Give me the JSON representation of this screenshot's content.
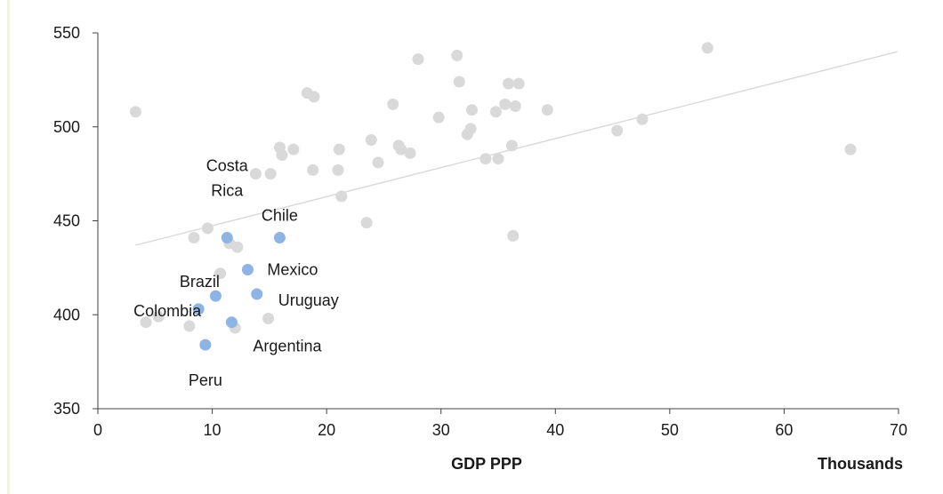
{
  "chart_data": {
    "type": "scatter",
    "title": "",
    "xlabel": "GDP PPP",
    "x_unit_label": "Thousands",
    "ylabel": "",
    "xlim": [
      0,
      70
    ],
    "ylim": [
      350,
      550
    ],
    "x_ticks": [
      "0",
      "10",
      "20",
      "30",
      "40",
      "50",
      "60",
      "70"
    ],
    "y_ticks": [
      "350",
      "400",
      "450",
      "500",
      "550"
    ],
    "grid": false,
    "legend": "none",
    "colors": {
      "other": "#d9d9d9",
      "highlight": "#8eb4e3",
      "trend": "#d9d9d9",
      "axis": "#404040"
    },
    "trendline": {
      "x": [
        3.3,
        69.9
      ],
      "y": [
        437,
        540
      ]
    },
    "series": [
      {
        "points": [
          {
            "x": 3.3,
            "y": 508
          },
          {
            "x": 4.2,
            "y": 396
          },
          {
            "x": 5.3,
            "y": 399
          },
          {
            "x": 8.0,
            "y": 394
          },
          {
            "x": 8.4,
            "y": 441
          },
          {
            "x": 9.6,
            "y": 446
          },
          {
            "x": 10.7,
            "y": 422
          },
          {
            "x": 11.5,
            "y": 438
          },
          {
            "x": 12.0,
            "y": 393
          },
          {
            "x": 12.2,
            "y": 436
          },
          {
            "x": 13.8,
            "y": 475
          },
          {
            "x": 14.9,
            "y": 398
          },
          {
            "x": 15.1,
            "y": 475
          },
          {
            "x": 15.9,
            "y": 489
          },
          {
            "x": 16.1,
            "y": 485
          },
          {
            "x": 17.1,
            "y": 488
          },
          {
            "x": 18.3,
            "y": 518
          },
          {
            "x": 18.8,
            "y": 477
          },
          {
            "x": 18.9,
            "y": 516
          },
          {
            "x": 21.0,
            "y": 477
          },
          {
            "x": 21.1,
            "y": 488
          },
          {
            "x": 21.3,
            "y": 463
          },
          {
            "x": 23.5,
            "y": 449
          },
          {
            "x": 23.9,
            "y": 493
          },
          {
            "x": 24.5,
            "y": 481
          },
          {
            "x": 25.8,
            "y": 512
          },
          {
            "x": 26.3,
            "y": 490
          },
          {
            "x": 26.5,
            "y": 488
          },
          {
            "x": 27.3,
            "y": 486
          },
          {
            "x": 28.0,
            "y": 536
          },
          {
            "x": 29.8,
            "y": 505
          },
          {
            "x": 31.4,
            "y": 538
          },
          {
            "x": 31.6,
            "y": 524
          },
          {
            "x": 32.3,
            "y": 496
          },
          {
            "x": 32.6,
            "y": 499
          },
          {
            "x": 32.7,
            "y": 509
          },
          {
            "x": 33.9,
            "y": 483
          },
          {
            "x": 34.8,
            "y": 508
          },
          {
            "x": 35.0,
            "y": 483
          },
          {
            "x": 35.6,
            "y": 512
          },
          {
            "x": 35.9,
            "y": 523
          },
          {
            "x": 36.2,
            "y": 490
          },
          {
            "x": 36.3,
            "y": 442
          },
          {
            "x": 36.5,
            "y": 511
          },
          {
            "x": 36.8,
            "y": 523
          },
          {
            "x": 39.3,
            "y": 509
          },
          {
            "x": 45.4,
            "y": 498
          },
          {
            "x": 47.6,
            "y": 504
          },
          {
            "x": 53.3,
            "y": 542
          },
          {
            "x": 65.8,
            "y": 488
          }
        ]
      },
      {
        "points": [
          {
            "x": 9.4,
            "y": 384,
            "label": "Peru"
          },
          {
            "x": 8.8,
            "y": 403,
            "label": "Colombia"
          },
          {
            "x": 10.3,
            "y": 410,
            "label": "Brazil"
          },
          {
            "x": 11.7,
            "y": 396,
            "label": "Argentina"
          },
          {
            "x": 11.3,
            "y": 441,
            "label": "Costa Rica"
          },
          {
            "x": 13.1,
            "y": 424,
            "label": "Mexico"
          },
          {
            "x": 13.9,
            "y": 411,
            "label": "Uruguay"
          },
          {
            "x": 15.9,
            "y": 441,
            "label": "Chile"
          }
        ]
      }
    ],
    "annotations": [
      {
        "lines": [
          "Peru"
        ],
        "x": 9.4,
        "y": 384,
        "dx": 0,
        "dy": 40,
        "anchor": "middle"
      },
      {
        "lines": [
          "Colombia"
        ],
        "x": 8.8,
        "y": 403,
        "dx": -35,
        "dy": 2,
        "anchor": "middle"
      },
      {
        "lines": [
          "Brazil"
        ],
        "x": 10.3,
        "y": 410,
        "dx": -18,
        "dy": -16,
        "anchor": "middle"
      },
      {
        "lines": [
          "Argentina"
        ],
        "x": 11.7,
        "y": 396,
        "dx": 24,
        "dy": 27,
        "anchor": "start"
      },
      {
        "lines": [
          "Costa",
          "Rica"
        ],
        "x": 11.3,
        "y": 441,
        "dx": 0,
        "dy": -53,
        "anchor": "middle"
      },
      {
        "lines": [
          "Mexico"
        ],
        "x": 13.1,
        "y": 424,
        "dx": 22,
        "dy": 0,
        "anchor": "start"
      },
      {
        "lines": [
          "Uruguay"
        ],
        "x": 13.9,
        "y": 411,
        "dx": 24,
        "dy": 7,
        "anchor": "start"
      },
      {
        "lines": [
          "Chile"
        ],
        "x": 15.9,
        "y": 441,
        "dx": 0,
        "dy": -25,
        "anchor": "middle"
      }
    ]
  }
}
